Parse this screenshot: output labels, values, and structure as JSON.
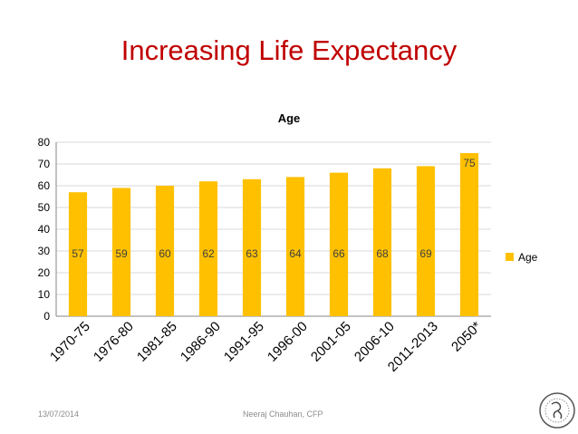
{
  "slide": {
    "title": "Increasing Life Expectancy",
    "footer_date": "13/07/2014",
    "footer_author": "Neeraj Chauhan, CFP"
  },
  "colors": {
    "title": "#c00000",
    "bar": "#ffc000",
    "grid": "#d9d9d9",
    "text": "#404040"
  },
  "chart_data": {
    "type": "bar",
    "title": "Age",
    "categories": [
      "1970-75",
      "1976-80",
      "1981-85",
      "1986-90",
      "1991-95",
      "1996-00",
      "2001-05",
      "2006-10",
      "2011-2013",
      "2050*"
    ],
    "series": [
      {
        "name": "Age",
        "values": [
          57,
          59,
          60,
          62,
          63,
          64,
          66,
          68,
          69,
          75
        ]
      }
    ],
    "ylim": [
      0,
      80
    ],
    "yticks": [
      0,
      10,
      20,
      30,
      40,
      50,
      60,
      70,
      80
    ],
    "grid": true,
    "legend_position": "right",
    "data_labels": true
  }
}
